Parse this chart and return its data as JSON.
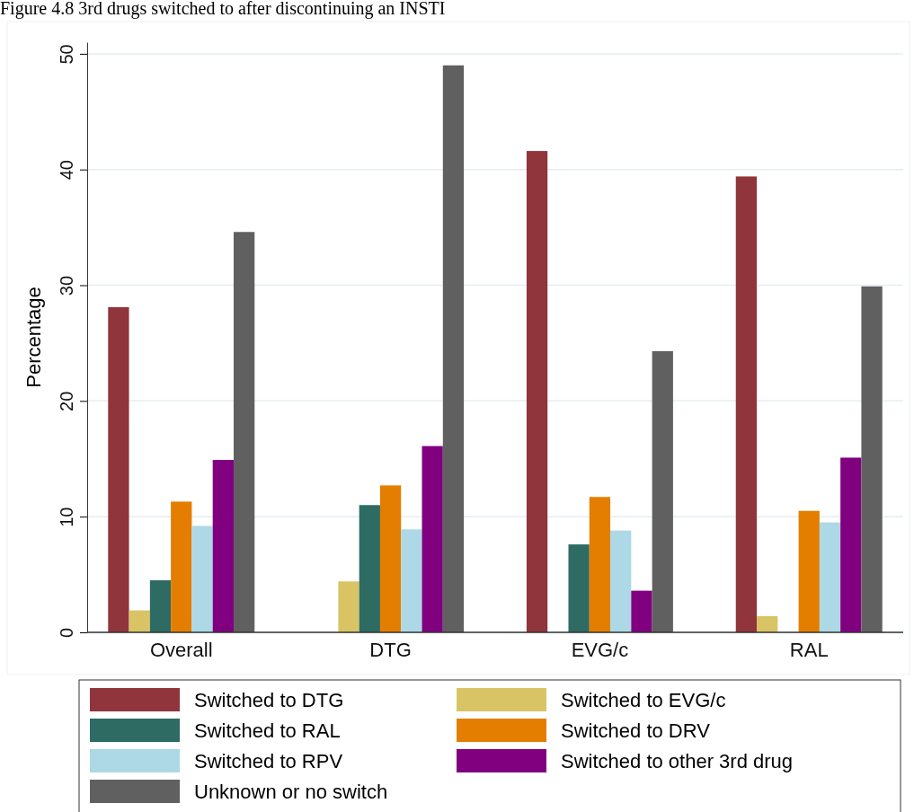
{
  "chart_data": {
    "type": "bar",
    "title": "Figure 4.8 3rd drugs switched to after discontinuing an INSTI",
    "ylabel": "Percentage",
    "categories": [
      "Overall",
      "DTG",
      "EVG/c",
      "RAL"
    ],
    "series": [
      {
        "name": "Switched to DTG",
        "color": "#90353b",
        "values": [
          28.1,
          0,
          41.6,
          39.4
        ]
      },
      {
        "name": "Switched to EVG/c",
        "color": "#d9c465",
        "values": [
          1.9,
          4.4,
          0,
          1.4
        ]
      },
      {
        "name": "Switched to RAL",
        "color": "#2d6b63",
        "values": [
          4.5,
          11.0,
          7.6,
          0
        ]
      },
      {
        "name": "Switched to DRV",
        "color": "#e37e00",
        "values": [
          11.3,
          12.7,
          11.7,
          10.5
        ]
      },
      {
        "name": "Switched to RPV",
        "color": "#add8e6",
        "values": [
          9.2,
          8.9,
          8.8,
          9.5
        ]
      },
      {
        "name": "Switched to other 3rd drug",
        "color": "#800080",
        "values": [
          14.9,
          16.1,
          3.6,
          15.1
        ]
      },
      {
        "name": "Unknown or no switch",
        "color": "#606060",
        "values": [
          34.6,
          49.0,
          24.3,
          29.9
        ]
      }
    ],
    "ylim": [
      0,
      51
    ],
    "yticks": [
      0,
      10,
      20,
      30,
      40,
      50
    ],
    "grid": "y",
    "legend": "bottom"
  }
}
